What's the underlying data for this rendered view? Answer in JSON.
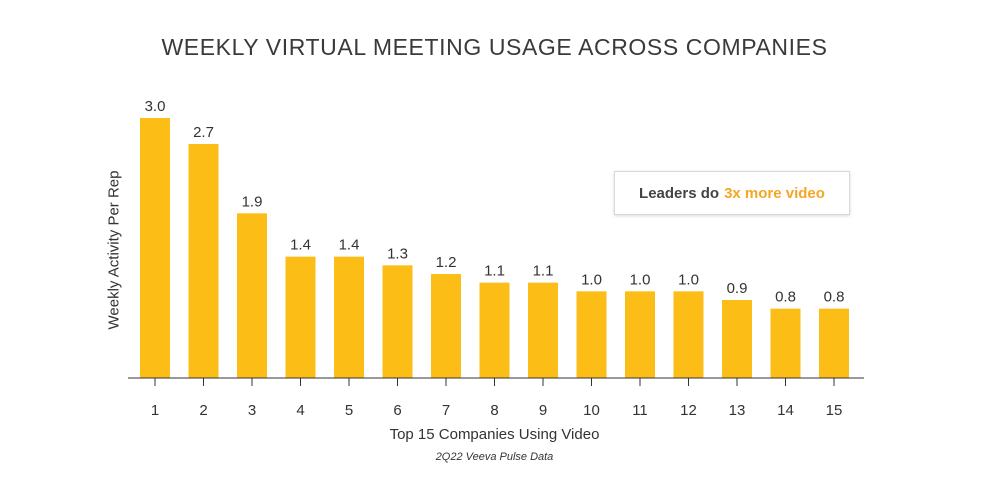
{
  "chart_data": {
    "type": "bar",
    "title": "WEEKLY VIRTUAL MEETING USAGE ACROSS COMPANIES",
    "xlabel": "Top 15 Companies Using Video",
    "ylabel": "Weekly Activity Per Rep",
    "source": "2Q22 Veeva Pulse Data",
    "categories": [
      "1",
      "2",
      "3",
      "4",
      "5",
      "6",
      "7",
      "8",
      "9",
      "10",
      "11",
      "12",
      "13",
      "14",
      "15"
    ],
    "values": [
      3.0,
      2.7,
      1.9,
      1.4,
      1.4,
      1.3,
      1.2,
      1.1,
      1.1,
      1.0,
      1.0,
      1.0,
      0.9,
      0.8,
      0.8
    ],
    "value_labels": [
      "3.0",
      "2.7",
      "1.9",
      "1.4",
      "1.4",
      "1.3",
      "1.2",
      "1.1",
      "1.1",
      "1.0",
      "1.0",
      "1.0",
      "0.9",
      "0.8",
      "0.8"
    ],
    "ylim": [
      0,
      3.0
    ],
    "grid": false,
    "annotation": {
      "prefix": "Leaders do",
      "highlight": "3x more video"
    }
  },
  "colors": {
    "bar": "#fbbd16",
    "highlight": "#f5a623",
    "axis": "#333333"
  }
}
